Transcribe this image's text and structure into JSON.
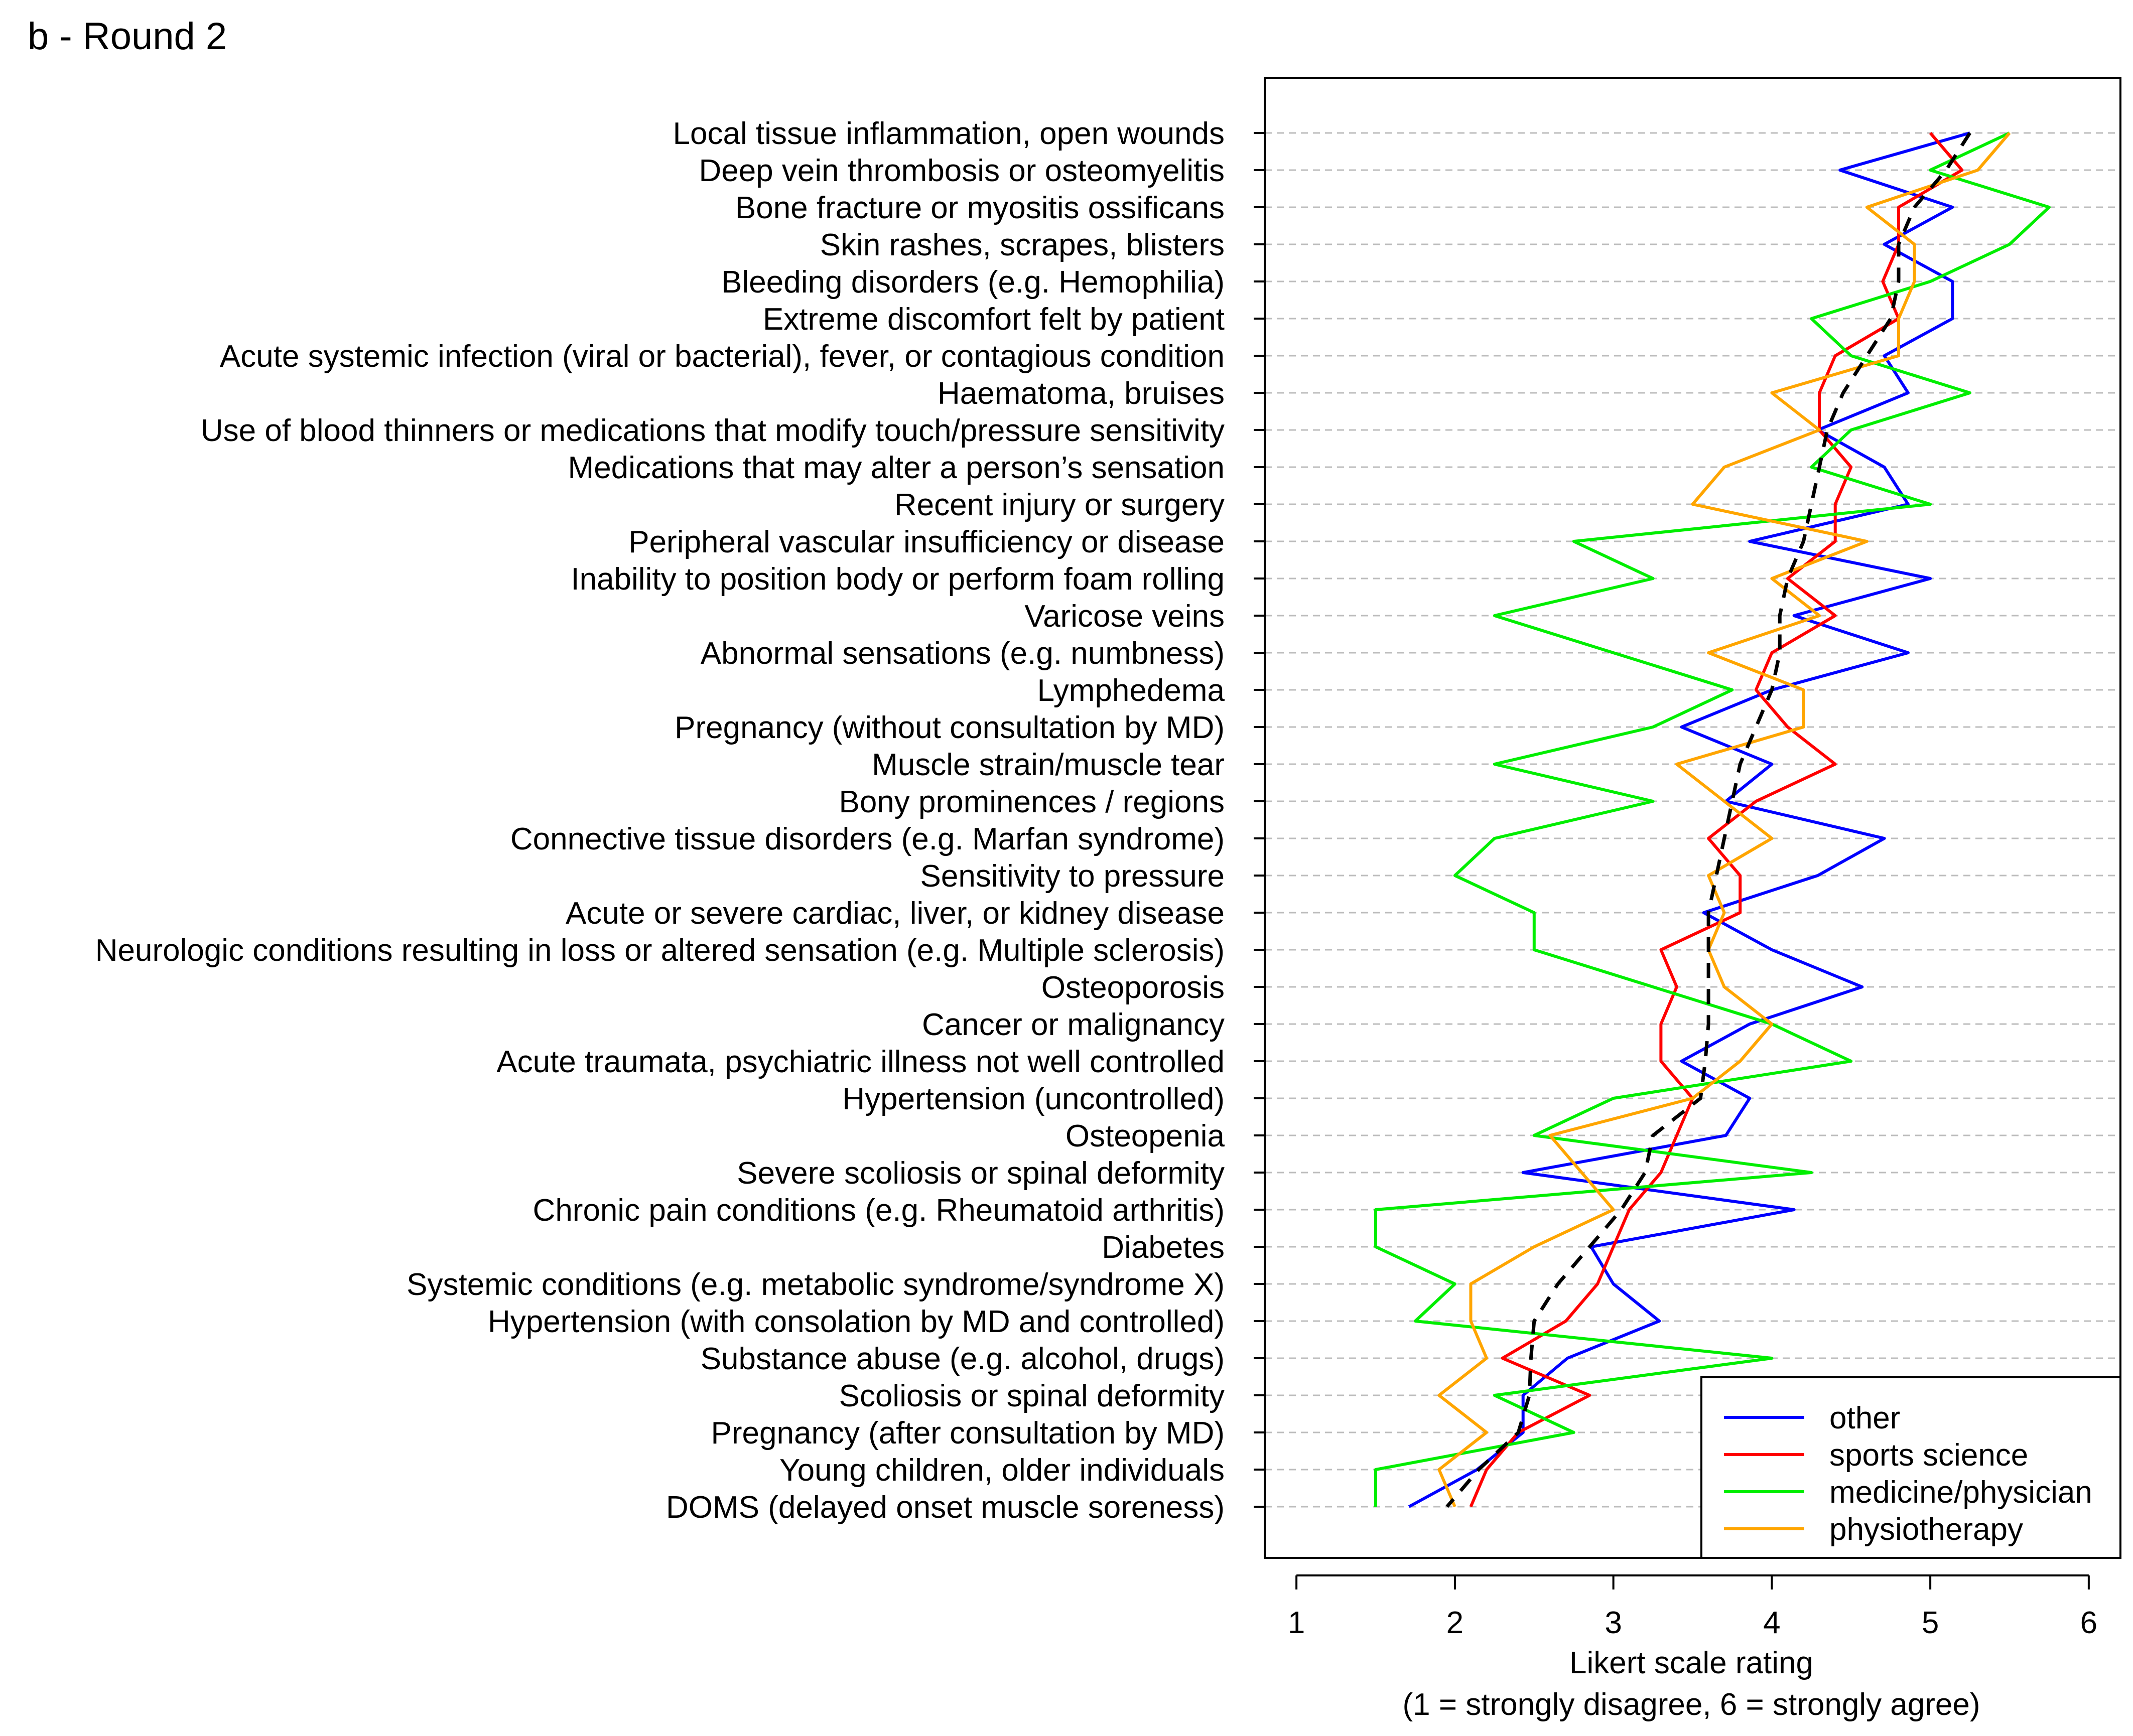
{
  "chart_data": {
    "type": "line",
    "title": "b - Round 2",
    "xlabel": "Likert scale rating",
    "xlabel2": "(1 = strongly disagree, 6 = strongly agree)",
    "xlim": [
      0.8,
      6.2
    ],
    "xticks": [
      "1",
      "2",
      "3",
      "4",
      "5",
      "6"
    ],
    "categories": [
      "Local tissue inflammation, open wounds",
      "Deep vein thrombosis or osteomyelitis",
      "Bone fracture or myositis ossificans",
      "Skin rashes, scrapes, blisters",
      "Bleeding disorders (e.g. Hemophilia)",
      "Extreme discomfort felt by patient",
      "Acute systemic infection (viral or bacterial), fever, or contagious condition",
      "Haematoma, bruises",
      "Use of blood thinners or medications that modify touch/pressure sensitivity",
      "Medications that may alter a person’s sensation",
      "Recent injury or surgery",
      "Peripheral vascular insufficiency or disease",
      "Inability to position body or perform foam rolling",
      "Varicose veins",
      "Abnormal sensations (e.g. numbness)",
      "Lymphedema",
      "Pregnancy (without consultation by MD)",
      "Muscle strain/muscle tear",
      "Bony prominences / regions",
      "Connective tissue disorders (e.g. Marfan syndrome)",
      "Sensitivity to pressure",
      "Acute or severe cardiac, liver, or kidney disease",
      "Neurologic conditions resulting in loss or altered sensation (e.g. Multiple sclerosis)",
      "Osteoporosis",
      "Cancer or malignancy",
      "Acute traumata, psychiatric illness not well controlled",
      "Hypertension (uncontrolled)",
      "Osteopenia",
      "Severe scoliosis or spinal deformity",
      "Chronic pain conditions (e.g. Rheumatoid arthritis)",
      "Diabetes",
      "Systemic conditions (e.g. metabolic syndrome/syndrome X)",
      "Hypertension (with consolation by MD and controlled)",
      "Substance abuse (e.g. alcohol, drugs)",
      "Scoliosis or spinal deformity",
      "Pregnancy (after consultation by MD)",
      "Young children, older individuals",
      "DOMS (delayed onset muscle soreness)"
    ],
    "series": [
      {
        "name": "other",
        "color": "#0000ff",
        "legend": true,
        "values": [
          5.25,
          4.43,
          5.14,
          4.71,
          5.14,
          5.14,
          4.71,
          4.86,
          4.29,
          4.71,
          4.86,
          3.86,
          5.0,
          4.14,
          4.86,
          4.0,
          3.43,
          4.0,
          3.71,
          4.71,
          4.29,
          3.57,
          4.0,
          4.57,
          3.86,
          3.43,
          3.86,
          3.71,
          2.43,
          4.14,
          2.86,
          3.0,
          3.29,
          2.71,
          2.43,
          2.43,
          2.14,
          1.71
        ]
      },
      {
        "name": "sports science",
        "color": "#ff0000",
        "legend": true,
        "values": [
          5.0,
          5.2,
          4.8,
          4.8,
          4.7,
          4.8,
          4.4,
          4.3,
          4.3,
          4.5,
          4.4,
          4.4,
          4.1,
          4.4,
          4.0,
          3.9,
          4.1,
          4.4,
          3.9,
          3.6,
          3.8,
          3.8,
          3.3,
          3.4,
          3.3,
          3.3,
          3.5,
          3.4,
          3.3,
          3.1,
          3.0,
          2.9,
          2.7,
          2.3,
          2.85,
          2.4,
          2.2,
          2.1
        ]
      },
      {
        "name": "medicine/physician",
        "color": "#00ee00",
        "legend": true,
        "values": [
          5.5,
          5.0,
          5.75,
          5.5,
          5.0,
          4.25,
          4.5,
          5.25,
          4.5,
          4.25,
          5.0,
          2.75,
          3.25,
          2.25,
          3.0,
          3.75,
          3.25,
          2.25,
          3.25,
          2.25,
          2.0,
          2.5,
          2.5,
          3.25,
          4.0,
          4.5,
          3.0,
          2.5,
          4.25,
          1.5,
          1.5,
          2.0,
          1.75,
          4.0,
          2.25,
          2.75,
          1.5,
          1.5
        ]
      },
      {
        "name": "physiotherapy",
        "color": "#ffa500",
        "legend": true,
        "values": [
          5.5,
          5.3,
          4.6,
          4.9,
          4.9,
          4.8,
          4.8,
          4.0,
          4.3,
          3.7,
          3.5,
          4.6,
          4.0,
          4.3,
          3.6,
          4.2,
          4.2,
          3.4,
          3.7,
          4.0,
          3.6,
          3.7,
          3.6,
          3.7,
          4.0,
          3.8,
          3.5,
          2.6,
          2.8,
          3.0,
          2.5,
          2.1,
          2.1,
          2.2,
          1.9,
          2.2,
          1.9,
          2.0
        ]
      },
      {
        "name": "mean",
        "color": "#000000",
        "dashed": true,
        "legend": false,
        "values": [
          5.25,
          5.1,
          4.9,
          4.8,
          4.8,
          4.75,
          4.6,
          4.45,
          4.35,
          4.3,
          4.25,
          4.2,
          4.1,
          4.05,
          4.05,
          4.0,
          3.9,
          3.8,
          3.75,
          3.7,
          3.65,
          3.6,
          3.6,
          3.6,
          3.6,
          3.58,
          3.55,
          3.25,
          3.2,
          3.05,
          2.85,
          2.65,
          2.5,
          2.48,
          2.47,
          2.4,
          2.15,
          1.95
        ]
      }
    ]
  }
}
